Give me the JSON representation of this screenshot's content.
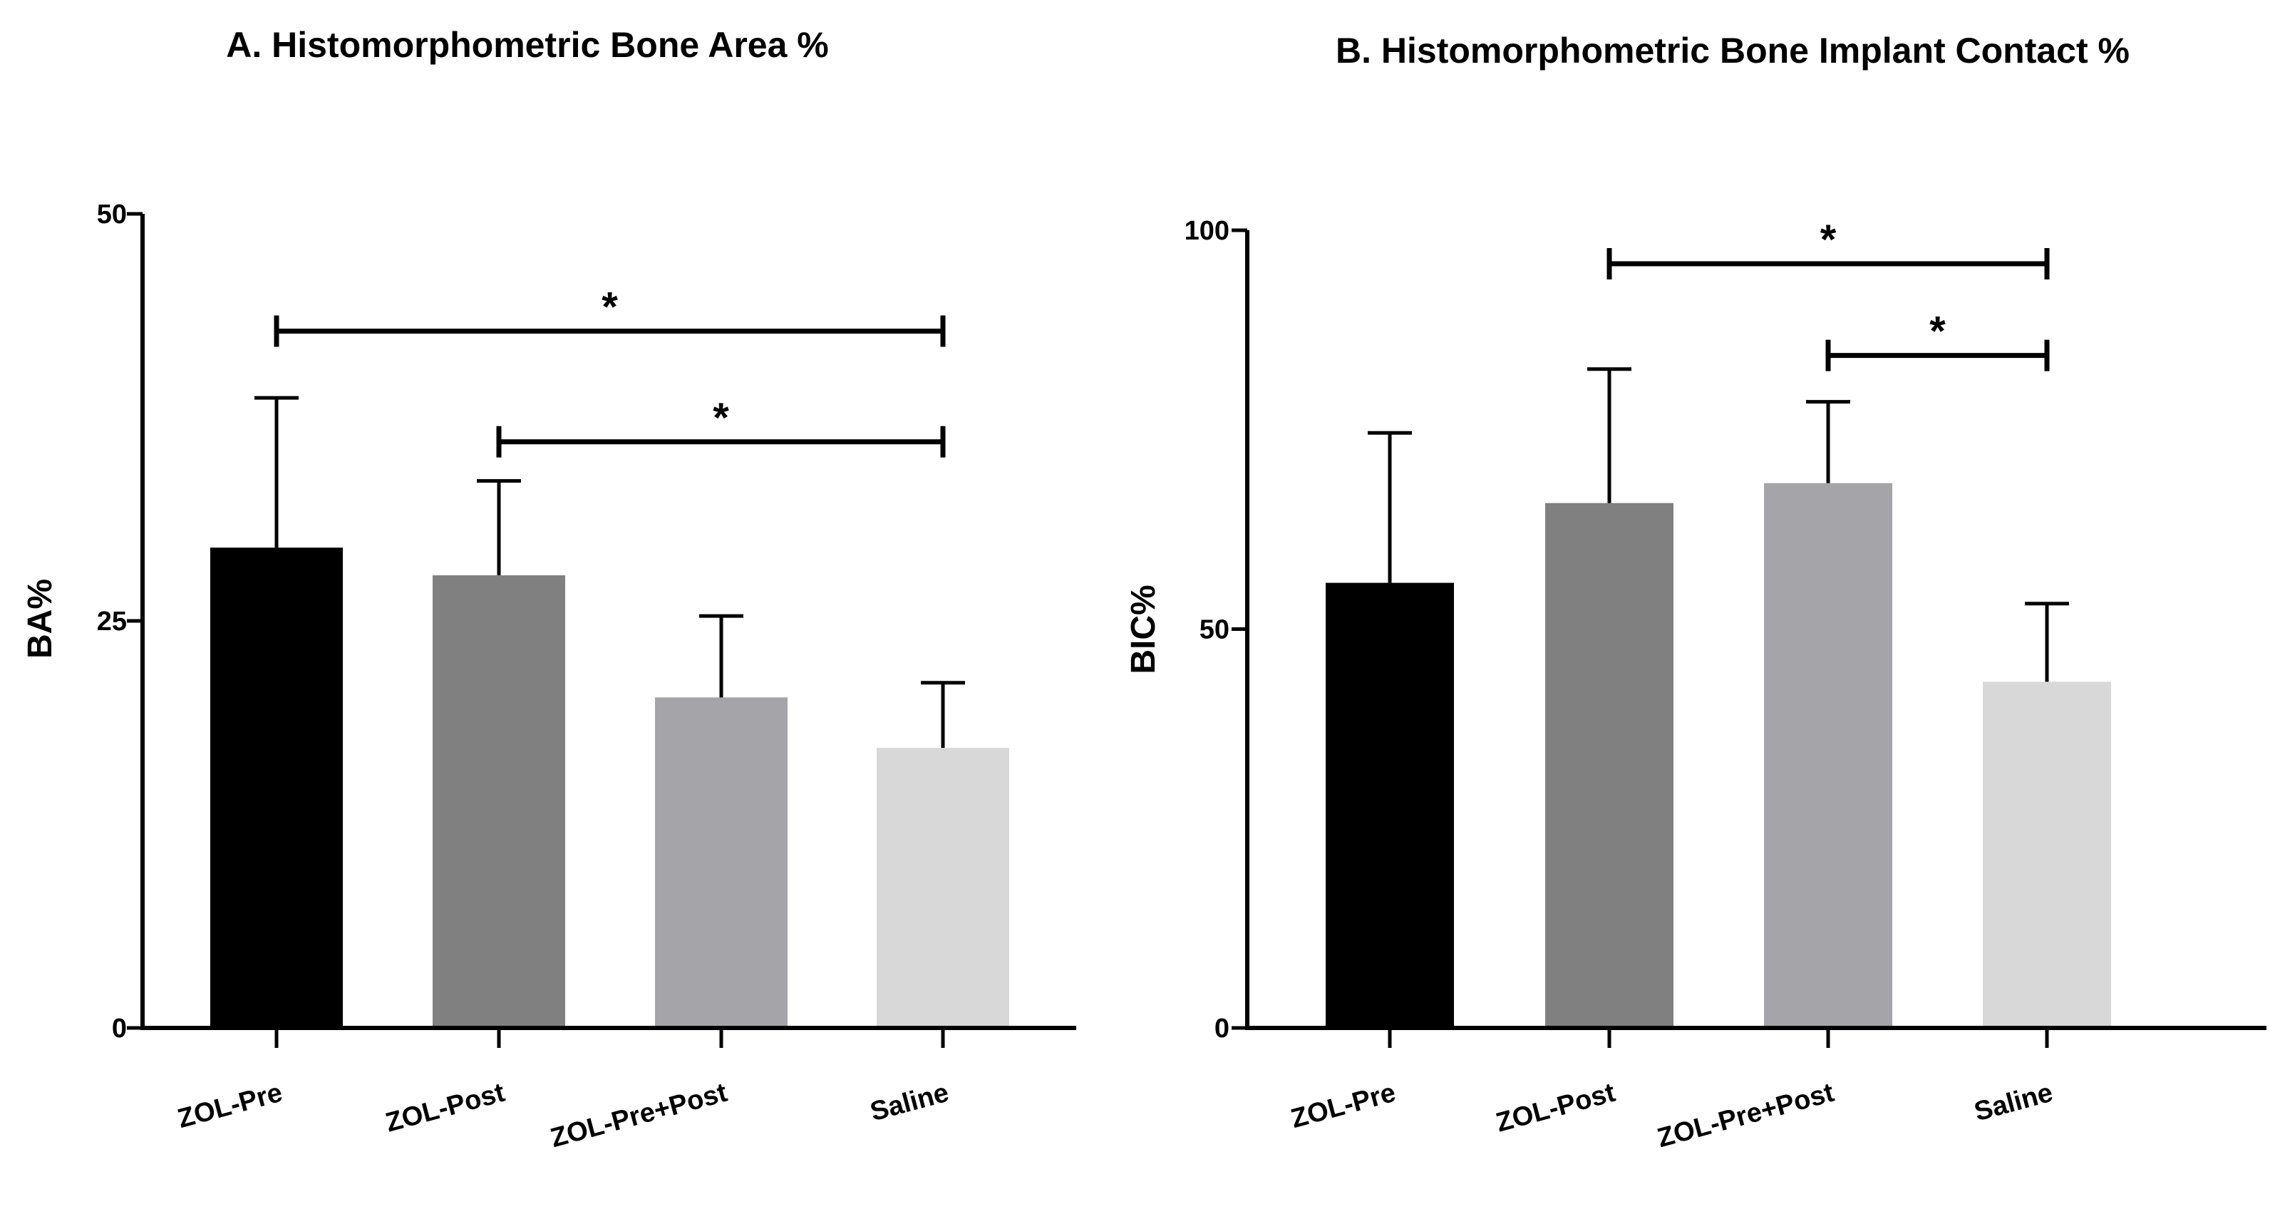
{
  "chart_data": [
    {
      "type": "bar",
      "title": "A. Histomorphometric Bone Area %",
      "ylabel": "BA%",
      "xlabel": "",
      "ylim": [
        0,
        50
      ],
      "yticks": [
        0,
        25,
        50
      ],
      "categories": [
        "ZOL-Pre",
        "ZOL-Post",
        "ZOL-Pre+Post",
        "Saline"
      ],
      "values": [
        29.5,
        27.8,
        20.3,
        17.2
      ],
      "errors": [
        9.2,
        5.8,
        5.0,
        4.0
      ],
      "colors": [
        "#000000",
        "#808080",
        "#a5a4a9",
        "#d8d8d8"
      ],
      "significance": [
        {
          "from": 0,
          "to": 3,
          "y": 42.8,
          "label": "*"
        },
        {
          "from": 1,
          "to": 3,
          "y": 36.0,
          "label": "*"
        }
      ]
    },
    {
      "type": "bar",
      "title": "B. Histomorphometric Bone Implant Contact %",
      "ylabel": "BIC%",
      "xlabel": "",
      "ylim": [
        0,
        100
      ],
      "yticks": [
        0,
        50,
        100
      ],
      "categories": [
        "ZOL-Pre",
        "ZOL-Post",
        "ZOL-Pre+Post",
        "Saline"
      ],
      "values": [
        55.8,
        65.8,
        68.3,
        43.4
      ],
      "errors": [
        18.8,
        16.8,
        10.2,
        9.8
      ],
      "colors": [
        "#000000",
        "#808080",
        "#a5a4a9",
        "#d8d8d8"
      ],
      "significance": [
        {
          "from": 1,
          "to": 3,
          "y": 95.8,
          "label": "*"
        },
        {
          "from": 2,
          "to": 3,
          "y": 84.3,
          "label": "*"
        }
      ]
    }
  ]
}
